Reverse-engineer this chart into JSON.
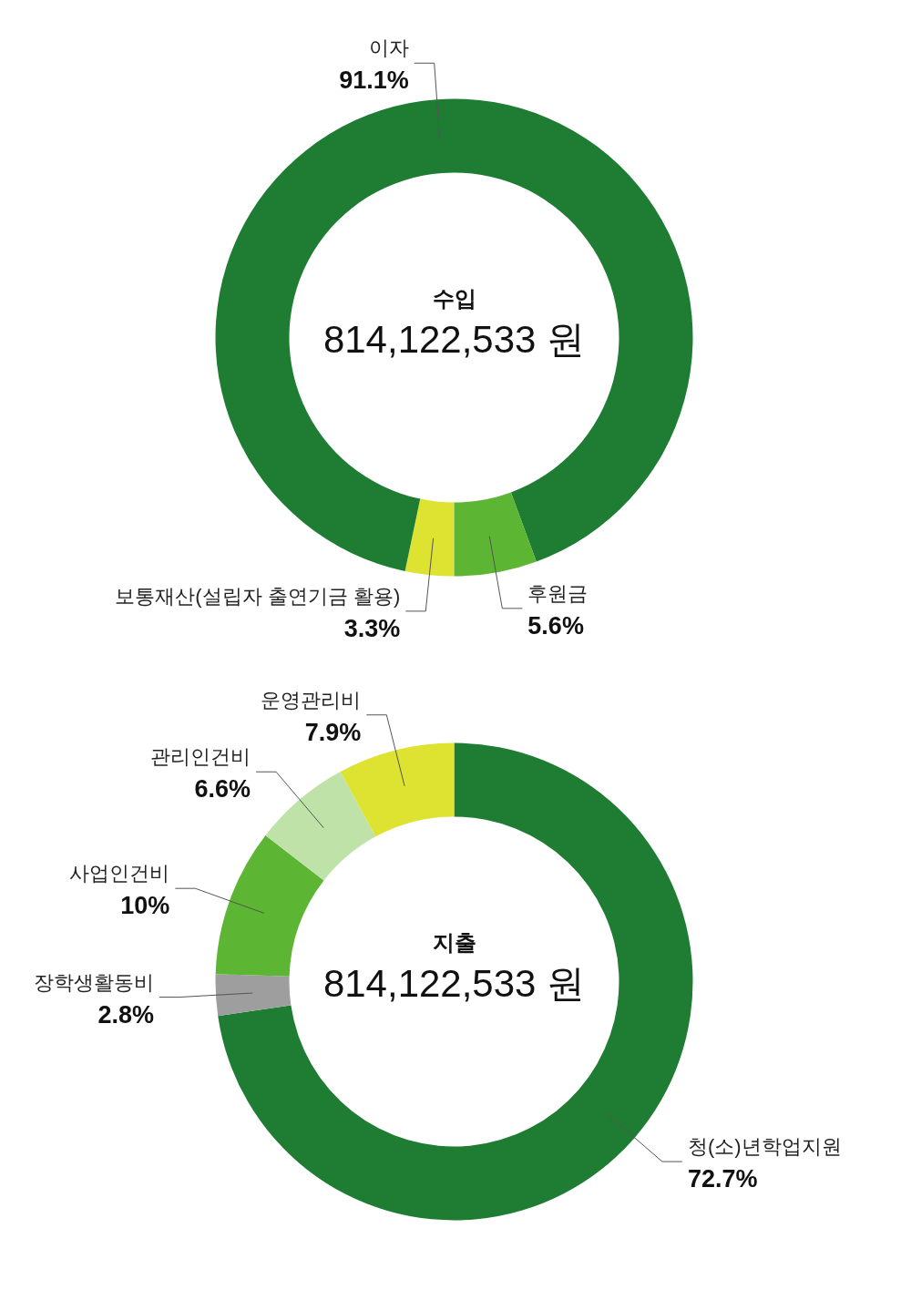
{
  "chart_data": [
    {
      "type": "donut",
      "title": "수입",
      "subtitle": "814,122,533 원",
      "categories": [
        "보통재산(설립자 출연기금 활용)",
        "이자",
        "후원금"
      ],
      "values": [
        3.3,
        91.1,
        5.6
      ],
      "colors": [
        "#dde330",
        "#1e7d32",
        "#5db534"
      ],
      "value_labels": [
        "3.3%",
        "91.1%",
        "5.6%"
      ]
    },
    {
      "type": "donut",
      "title": "지출",
      "subtitle": "814,122,533 원",
      "categories": [
        "청(소)년학업지원",
        "장학생활동비",
        "사업인건비",
        "관리인건비",
        "운영관리비"
      ],
      "values": [
        72.7,
        2.8,
        10,
        6.6,
        7.9
      ],
      "colors": [
        "#1e7d32",
        "#9e9e9e",
        "#5db534",
        "#bfe2a8",
        "#dde330"
      ],
      "value_labels": [
        "72.7%",
        "2.8%",
        "10%",
        "6.6%",
        "7.9%"
      ]
    }
  ]
}
